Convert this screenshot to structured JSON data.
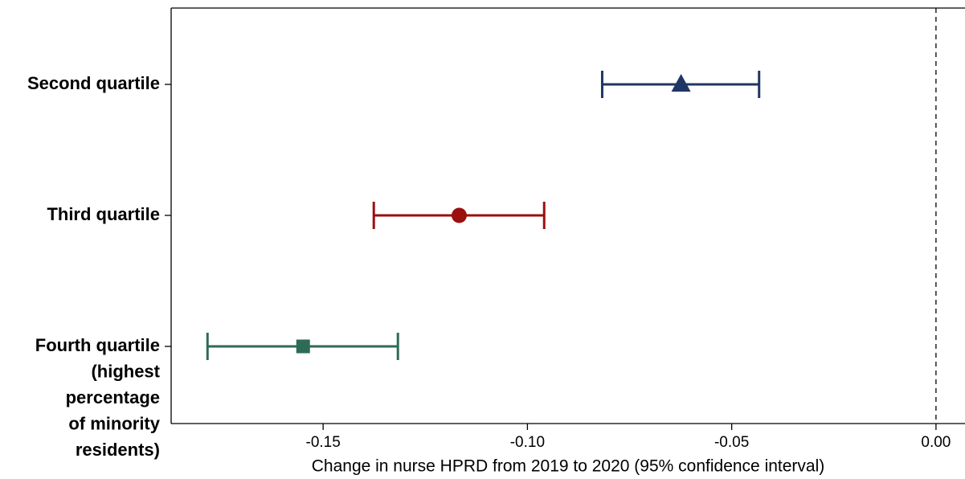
{
  "chart_data": {
    "type": "forest",
    "categories": [
      "Second quartile",
      "Third quartile",
      "Fourth quartile\n(highest\npercentage\nof minority\nresidents)"
    ],
    "estimates": [
      -0.0624,
      -0.1167,
      -0.1549
    ],
    "lower": [
      -0.0817,
      -0.1376,
      -0.1783
    ],
    "upper": [
      -0.0433,
      -0.0959,
      -0.1317
    ],
    "colors": [
      "#1f3764",
      "#9b0f0f",
      "#2e6b55"
    ],
    "markers": [
      "triangle",
      "circle",
      "square"
    ],
    "xlim": [
      -0.1872,
      0.0071
    ],
    "xticks": [
      {
        "value": -0.15,
        "label": "-0.15"
      },
      {
        "value": -0.1,
        "label": "-0.10"
      },
      {
        "value": -0.05,
        "label": "-0.05"
      },
      {
        "value": 0,
        "label": "0.00"
      }
    ],
    "reference_line": 0,
    "xlabel": "Change in nurse HPRD from 2019 to 2020 (95% confidence interval)"
  }
}
